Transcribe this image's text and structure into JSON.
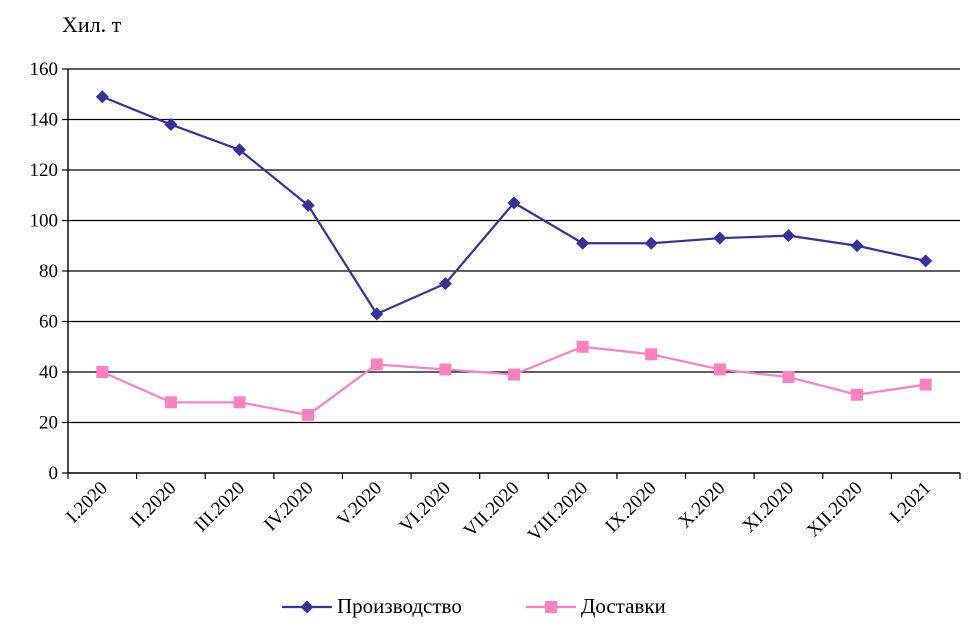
{
  "chart_data": {
    "type": "line",
    "unit_label": "Хил. т",
    "categories": [
      "I.2020",
      "II.2020",
      "III.2020",
      "IV.2020",
      "V.2020",
      "VI.2020",
      "VII.2020",
      "VIII.2020",
      "IX.2020",
      "X.2020",
      "XI.2020",
      "XII.2020",
      "I.2021"
    ],
    "series": [
      {
        "name": "Производство",
        "values": [
          149,
          138,
          128,
          106,
          63,
          75,
          107,
          91,
          91,
          93,
          94,
          90,
          84
        ],
        "color": "#333399",
        "marker": "diamond"
      },
      {
        "name": "Доставки",
        "values": [
          40,
          28,
          28,
          23,
          43,
          41,
          39,
          50,
          47,
          41,
          38,
          31,
          35
        ],
        "color": "#ff80c0",
        "marker": "square"
      }
    ],
    "ylim": [
      0,
      160
    ],
    "yticks": [
      0,
      20,
      40,
      60,
      80,
      100,
      120,
      140,
      160
    ],
    "grid": true,
    "legend_position": "bottom"
  }
}
